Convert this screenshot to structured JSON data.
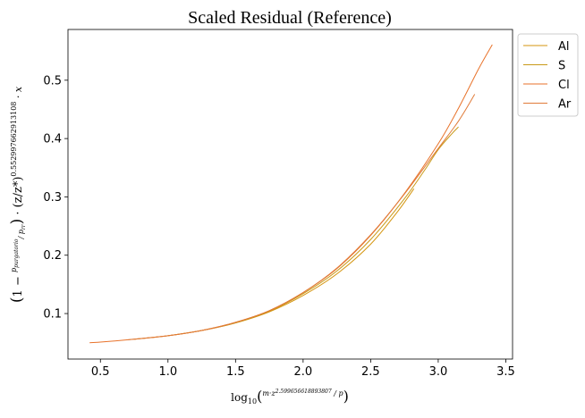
{
  "chart_data": {
    "type": "line",
    "title": "Scaled Residual (Reference)",
    "xlabel": "log10(m·z^2.599656618893807 / p)",
    "ylabel": "(1 − p_purgatorio / p_rr) · (z/z*)^0.552997662913108 · x",
    "xlim": [
      0.26,
      3.55
    ],
    "ylim": [
      0.022,
      0.587
    ],
    "x_ticks": [
      0.5,
      1.0,
      1.5,
      2.0,
      2.5,
      3.0,
      3.5
    ],
    "x_tick_labels": [
      "0.5",
      "1.0",
      "1.5",
      "2.0",
      "2.5",
      "3.0",
      "3.5"
    ],
    "y_ticks": [
      0.1,
      0.2,
      0.3,
      0.4,
      0.5
    ],
    "y_tick_labels": [
      "0.1",
      "0.2",
      "0.3",
      "0.4",
      "0.5"
    ],
    "grid": false,
    "legend_position": "outside-top-right",
    "series": [
      {
        "name": "Al",
        "color": "#d4950f",
        "x": [
          0.75,
          1.0,
          1.25,
          1.5,
          1.75,
          2.0,
          2.25,
          2.5,
          2.7,
          2.82
        ],
        "y": [
          0.056,
          0.062,
          0.071,
          0.084,
          0.103,
          0.131,
          0.168,
          0.219,
          0.275,
          0.314
        ]
      },
      {
        "name": "S",
        "color": "#c89a18",
        "x": [
          1.0,
          1.25,
          1.5,
          1.75,
          2.0,
          2.25,
          2.5,
          2.75,
          2.9,
          3.0,
          3.1,
          3.15
        ],
        "y": [
          0.062,
          0.071,
          0.084,
          0.104,
          0.134,
          0.173,
          0.227,
          0.297,
          0.346,
          0.381,
          0.408,
          0.42
        ]
      },
      {
        "name": "Cl",
        "color": "#e8722a",
        "x": [
          0.42,
          0.5,
          0.75,
          1.0,
          1.25,
          1.5,
          1.75,
          2.0,
          2.25,
          2.5,
          2.75,
          3.0,
          3.15,
          3.3,
          3.4
        ],
        "y": [
          0.05,
          0.051,
          0.056,
          0.062,
          0.071,
          0.085,
          0.105,
          0.136,
          0.177,
          0.234,
          0.306,
          0.391,
          0.452,
          0.52,
          0.561
        ]
      },
      {
        "name": "Ar",
        "color": "#e07b39",
        "x": [
          0.7,
          1.0,
          1.25,
          1.5,
          1.75,
          2.0,
          2.25,
          2.5,
          2.75,
          3.0,
          3.15,
          3.27
        ],
        "y": [
          0.055,
          0.062,
          0.071,
          0.085,
          0.105,
          0.136,
          0.178,
          0.235,
          0.305,
          0.383,
          0.43,
          0.476
        ]
      }
    ]
  }
}
